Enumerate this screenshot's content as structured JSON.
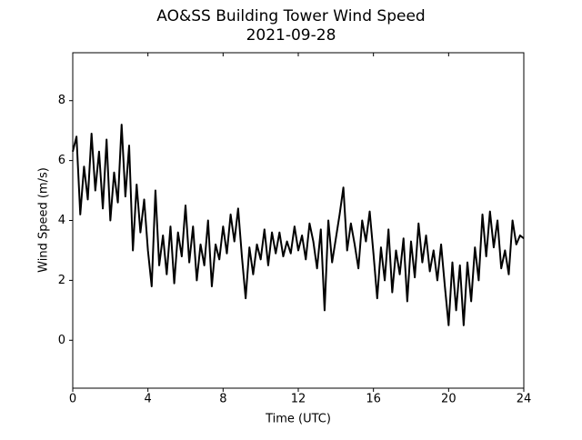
{
  "chart_data": {
    "type": "line",
    "title": "AO&SS Building Tower Wind Speed",
    "subtitle": "2021-09-28",
    "x_label": "Time (UTC)",
    "y_label": "Wind Speed (m/s)",
    "x": [
      0,
      0.2,
      0.4,
      0.6,
      0.8,
      1,
      1.2,
      1.4,
      1.6,
      1.8,
      2,
      2.2,
      2.4,
      2.6,
      2.8,
      3,
      3.2,
      3.4,
      3.6,
      3.8,
      4,
      4.2,
      4.4,
      4.6,
      4.8,
      5,
      5.2,
      5.4,
      5.6,
      5.8,
      6,
      6.2,
      6.4,
      6.6,
      6.8,
      7,
      7.2,
      7.4,
      7.6,
      7.8,
      8,
      8.2,
      8.4,
      8.6,
      8.8,
      9,
      9.2,
      9.4,
      9.6,
      9.8,
      10,
      10.2,
      10.4,
      10.6,
      10.8,
      11,
      11.2,
      11.4,
      11.6,
      11.8,
      12,
      12.2,
      12.4,
      12.6,
      12.8,
      13,
      13.2,
      13.4,
      13.6,
      13.8,
      14,
      14.2,
      14.4,
      14.6,
      14.8,
      15,
      15.2,
      15.4,
      15.6,
      15.8,
      16,
      16.2,
      16.4,
      16.6,
      16.8,
      17,
      17.2,
      17.4,
      17.6,
      17.8,
      18,
      18.2,
      18.4,
      18.6,
      18.8,
      19,
      19.2,
      19.4,
      19.6,
      19.8,
      20,
      20.2,
      20.4,
      20.6,
      20.8,
      21,
      21.2,
      21.4,
      21.6,
      21.8,
      22,
      22.2,
      22.4,
      22.6,
      22.8,
      23,
      23.2,
      23.4,
      23.6,
      23.8,
      24
    ],
    "series": [
      {
        "name": "Wind Speed",
        "color": "#000000",
        "values": [
          6.3,
          6.8,
          4.2,
          5.8,
          4.7,
          6.9,
          5.0,
          6.3,
          4.4,
          6.7,
          4.0,
          5.6,
          4.6,
          7.2,
          4.8,
          6.5,
          3.0,
          5.2,
          3.6,
          4.7,
          3.0,
          1.8,
          5.0,
          2.5,
          3.5,
          2.2,
          3.8,
          1.9,
          3.6,
          2.8,
          4.5,
          2.6,
          3.8,
          2.0,
          3.2,
          2.5,
          4.0,
          1.8,
          3.2,
          2.7,
          3.8,
          2.9,
          4.2,
          3.3,
          4.4,
          2.8,
          1.4,
          3.1,
          2.2,
          3.2,
          2.7,
          3.7,
          2.5,
          3.6,
          2.9,
          3.6,
          2.8,
          3.3,
          2.9,
          3.8,
          3.0,
          3.5,
          2.7,
          3.9,
          3.3,
          2.4,
          3.7,
          1.0,
          4.0,
          2.6,
          3.4,
          4.2,
          5.1,
          3.0,
          3.9,
          3.2,
          2.4,
          4.0,
          3.3,
          4.3,
          2.9,
          1.4,
          3.1,
          2.0,
          3.7,
          1.6,
          3.0,
          2.2,
          3.4,
          1.3,
          3.3,
          2.1,
          3.9,
          2.6,
          3.5,
          2.3,
          3.0,
          2.0,
          3.2,
          1.8,
          0.5,
          2.6,
          1.0,
          2.5,
          0.5,
          2.6,
          1.3,
          3.1,
          2.0,
          4.2,
          2.8,
          4.3,
          3.1,
          4.0,
          2.4,
          3.0,
          2.2,
          4.0,
          3.2,
          3.5,
          3.4
        ]
      }
    ],
    "xlim": [
      0,
      24
    ],
    "xticks": [
      0,
      4,
      8,
      12,
      16,
      20,
      24
    ],
    "ylim": [
      -1.6,
      9.6
    ],
    "yticks": [
      0,
      2,
      4,
      6,
      8
    ],
    "grid": false
  }
}
